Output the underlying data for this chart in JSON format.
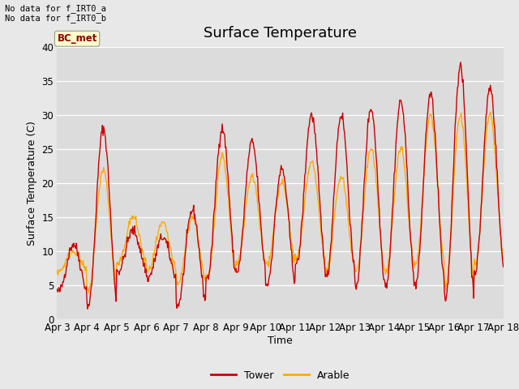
{
  "title": "Surface Temperature",
  "xlabel": "Time",
  "ylabel": "Surface Temperature (C)",
  "ylim": [
    0,
    40
  ],
  "fig_facecolor": "#e8e8e8",
  "plot_bg_color": "#dcdcdc",
  "tower_color": "#cc0000",
  "arable_color": "#ffaa00",
  "annotation_text": "No data for f_IRT0_a\nNo data for f_IRT0_b",
  "legend_label": "BC_met",
  "x_tick_labels": [
    "Apr 3",
    "Apr 4",
    "Apr 5",
    "Apr 6",
    "Apr 7",
    "Apr 8",
    "Apr 9",
    "Apr 10",
    "Apr 11",
    "Apr 12",
    "Apr 13",
    "Apr 14",
    "Apr 15",
    "Apr 16",
    "Apr 17",
    "Apr 18"
  ],
  "title_fontsize": 13,
  "axis_fontsize": 9,
  "tick_fontsize": 8.5,
  "n_days": 15,
  "day_tower_mins": [
    4,
    2,
    7,
    6,
    2,
    6,
    7,
    5,
    8,
    6,
    5,
    5,
    5,
    3,
    7,
    10
  ],
  "day_tower_maxs": [
    11,
    28,
    13,
    12,
    16,
    28,
    26,
    22,
    30,
    30,
    31,
    32,
    33,
    37,
    34,
    12
  ],
  "day_arable_mins": [
    7,
    4,
    8,
    7,
    5,
    6,
    8,
    8,
    9,
    7,
    7,
    7,
    8,
    5,
    8,
    11
  ],
  "day_arable_maxs": [
    10,
    22,
    15,
    14,
    15,
    24,
    21,
    20,
    23,
    21,
    25,
    25,
    30,
    30,
    30,
    12
  ]
}
